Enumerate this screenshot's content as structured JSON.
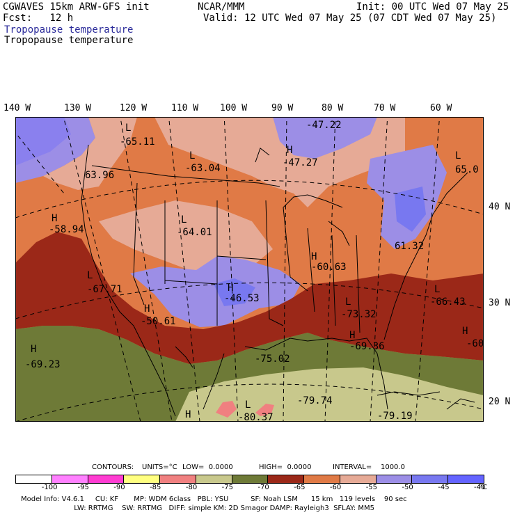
{
  "header": {
    "model": "CGWAVES 15km ARW-GFS init",
    "forecast": "Fcst:   12 h",
    "org": "NCAR/MMM",
    "init": "Init: 00 UTC Wed 07 May 25",
    "valid": "Valid: 12 UTC Wed 07 May 25 (07 CDT Wed 07 May 25)",
    "field_title_1": "Tropopause temperature",
    "field_title_2": "Tropopause temperature"
  },
  "lon_labels": [
    "140 W",
    "130 W",
    "120 W",
    "110 W",
    "100 W",
    "90 W",
    "80 W",
    "70 W",
    "60 W"
  ],
  "lat_labels": [
    "40 N",
    "30 N",
    "20 N"
  ],
  "map_labels": [
    {
      "kind": "L",
      "value": "-65.11"
    },
    {
      "kind": "L",
      "value": "-63.04"
    },
    {
      "kind": "H",
      "value": "-47.27"
    },
    {
      "kind": "",
      "value": "-47.22"
    },
    {
      "kind": "",
      "value": "63.96"
    },
    {
      "kind": "L",
      "value": "65.0"
    },
    {
      "kind": "H",
      "value": "-58.94"
    },
    {
      "kind": "L",
      "value": "-64.01"
    },
    {
      "kind": "",
      "value": "61.32"
    },
    {
      "kind": "H",
      "value": "-60.63"
    },
    {
      "kind": "L",
      "value": "-67.71"
    },
    {
      "kind": "H",
      "value": "-46.53"
    },
    {
      "kind": "L",
      "value": "-66.43"
    },
    {
      "kind": "H",
      "value": "-50.61"
    },
    {
      "kind": "L",
      "value": "-73.32"
    },
    {
      "kind": "H",
      "value": "-60"
    },
    {
      "kind": "H",
      "value": "-69.36"
    },
    {
      "kind": "H",
      "value": "-69.23"
    },
    {
      "kind": "",
      "value": "-75.02"
    },
    {
      "kind": "",
      "value": "-79.74"
    },
    {
      "kind": "L",
      "value": "-80.37"
    },
    {
      "kind": "H",
      "value": ""
    },
    {
      "kind": "",
      "value": "-79.19"
    }
  ],
  "contour_info": {
    "contours": "CONTOURS:",
    "units": "UNITS=°C",
    "low": "LOW=  0.0000",
    "high": "HIGH=  0.0000",
    "interval": "INTERVAL=    1000.0"
  },
  "colorbar": {
    "colors": [
      "#ffffff",
      "#ff80ff",
      "#ff3cd2",
      "#ffff80",
      "#f08080",
      "#c8c88c",
      "#6e7a37",
      "#9b2818",
      "#e07a46",
      "#e6aa96",
      "#9c8ee6",
      "#7878f0",
      "#6464ff"
    ],
    "ticks": [
      "-100",
      "-95",
      "-90",
      "-85",
      "-80",
      "-75",
      "-70",
      "-65",
      "-60",
      "-55",
      "-50",
      "-45",
      "-40"
    ],
    "unit": "°C"
  },
  "footer": {
    "line1": "Model Info: V4.6.1     CU: KF       MP: WDM 6class   PBL: YSU          SF: Noah LSM      15 km   119 levels    90 sec",
    "line2": "                        LW: RRTMG    SW: RRTMG   DIFF: simple KM: 2D Smagor DAMP: Rayleigh3  SFLAY: MM5"
  }
}
